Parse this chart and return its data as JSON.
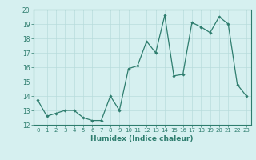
{
  "x": [
    0,
    1,
    2,
    3,
    4,
    5,
    6,
    7,
    8,
    9,
    10,
    11,
    12,
    13,
    14,
    15,
    16,
    17,
    18,
    19,
    20,
    21,
    22,
    23
  ],
  "y": [
    13.7,
    12.6,
    12.8,
    13.0,
    13.0,
    12.5,
    12.3,
    12.3,
    14.0,
    13.0,
    15.9,
    16.1,
    17.8,
    17.0,
    19.6,
    15.4,
    15.5,
    19.1,
    18.8,
    18.4,
    19.5,
    19.0,
    14.8,
    14.0
  ],
  "ylim": [
    12,
    20
  ],
  "yticks": [
    12,
    13,
    14,
    15,
    16,
    17,
    18,
    19,
    20
  ],
  "xtick_labels": [
    "0",
    "1",
    "2",
    "3",
    "4",
    "5",
    "6",
    "7",
    "8",
    "9",
    "10",
    "11",
    "12",
    "13",
    "14",
    "15",
    "16",
    "17",
    "18",
    "19",
    "20",
    "21",
    "22",
    "23"
  ],
  "xlabel": "Humidex (Indice chaleur)",
  "line_color": "#2e7d6e",
  "marker": "D",
  "marker_size": 1.8,
  "bg_color": "#d6f0f0",
  "grid_color": "#b8dcdc",
  "axis_color": "#2e7d6e",
  "tick_color": "#2e7d6e",
  "label_color": "#2e7d6e"
}
